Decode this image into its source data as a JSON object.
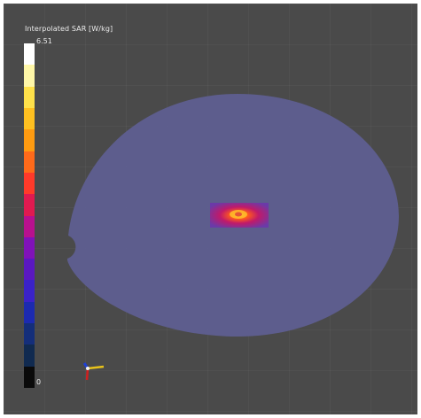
{
  "colorbar": {
    "title": "Interpolated SAR [W/kg]",
    "max_label": "6.51",
    "min_label": "0",
    "colors": [
      "#ffffff",
      "#fff7a8",
      "#ffe14a",
      "#ffc020",
      "#ff9b10",
      "#ff6a1a",
      "#ff3a2a",
      "#e01a50",
      "#b8108e",
      "#8012b8",
      "#5a18c0",
      "#3a22c8",
      "#1c2ab0",
      "#142e7a",
      "#102a50",
      "#0a0a0a"
    ]
  },
  "phantom": {
    "fill_color": "#5f5f8f",
    "hotspot_colors": [
      "#ffd02a",
      "#ff5a1e",
      "#c01a6a",
      "#6b3aa8"
    ]
  },
  "axes_widget": {
    "x_color": "#e8c21a",
    "y_color": "#d02020",
    "z_color": "#2040d0"
  }
}
